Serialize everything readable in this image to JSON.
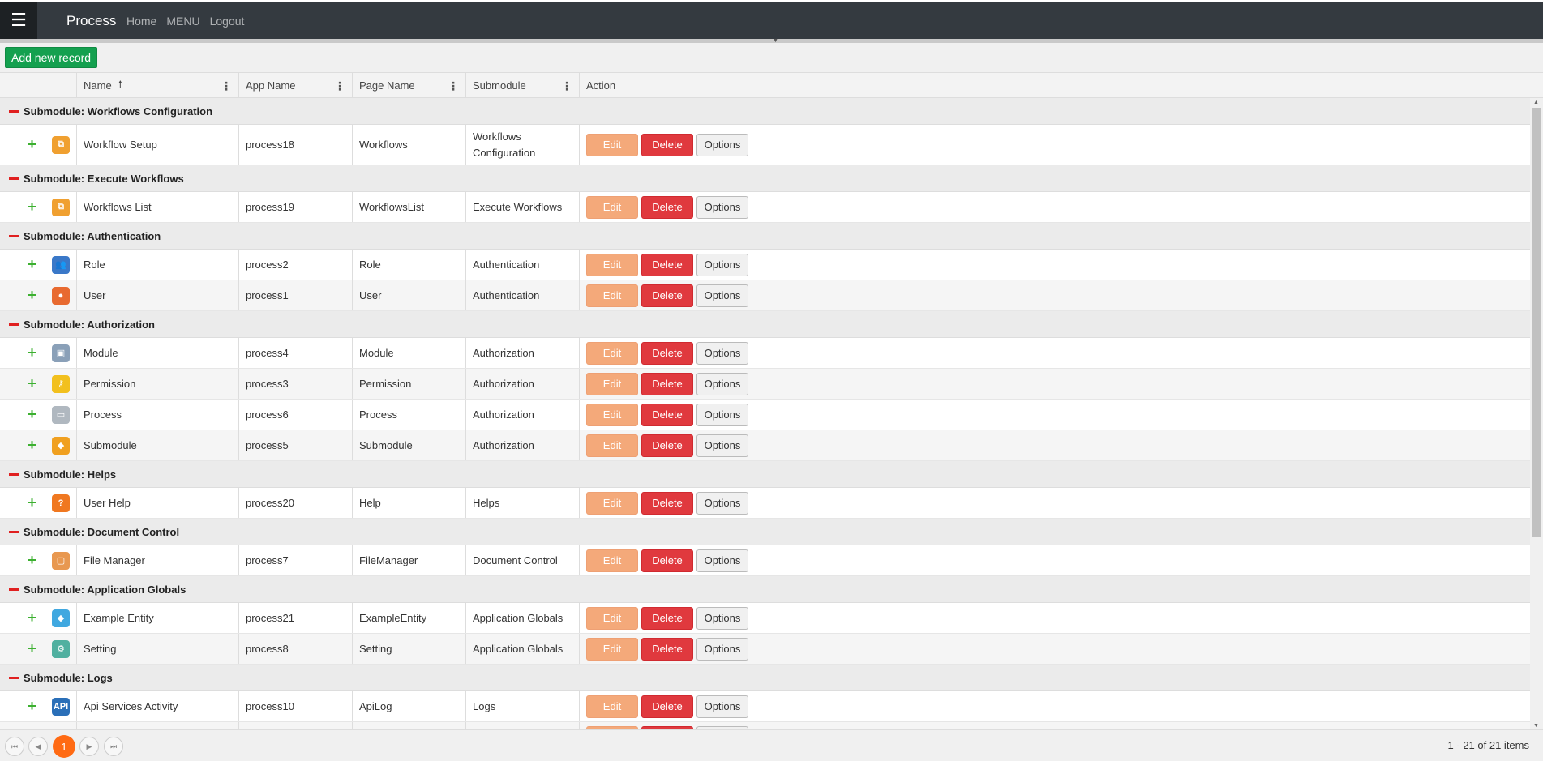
{
  "topbar": {
    "menu_icon": "hamburger-icon",
    "title": "Process",
    "nav": [
      "Home",
      "MENU",
      "Logout"
    ]
  },
  "toolbar": {
    "add_label": "Add new record"
  },
  "columns": {
    "name": "Name",
    "app_name": "App Name",
    "page_name": "Page Name",
    "submodule": "Submodule",
    "action": "Action"
  },
  "buttons": {
    "edit": "Edit",
    "delete": "Delete",
    "options": "Options"
  },
  "groups": [
    {
      "label": "Submodule: Workflows Configuration",
      "rows": [
        {
          "name": "Workflow Setup",
          "app": "process18",
          "page": "Workflows",
          "sub": "Workflows Configuration",
          "icon": "workflow-icon",
          "color": "#f0a030"
        }
      ]
    },
    {
      "label": "Submodule: Execute Workflows",
      "rows": [
        {
          "name": "Workflows List",
          "app": "process19",
          "page": "WorkflowsList",
          "sub": "Execute Workflows",
          "icon": "workflow-icon",
          "color": "#f0a030"
        }
      ]
    },
    {
      "label": "Submodule: Authentication",
      "rows": [
        {
          "name": "Role",
          "app": "process2",
          "page": "Role",
          "sub": "Authentication",
          "icon": "users-icon",
          "color": "#3a78c8"
        },
        {
          "name": "User",
          "app": "process1",
          "page": "User",
          "sub": "Authentication",
          "icon": "user-icon",
          "color": "#e86a30"
        }
      ]
    },
    {
      "label": "Submodule: Authorization",
      "rows": [
        {
          "name": "Module",
          "app": "process4",
          "page": "Module",
          "sub": "Authorization",
          "icon": "box-icon",
          "color": "#8aa0b8"
        },
        {
          "name": "Permission",
          "app": "process3",
          "page": "Permission",
          "sub": "Authorization",
          "icon": "key-icon",
          "color": "#f2c01e"
        },
        {
          "name": "Process",
          "app": "process6",
          "page": "Process",
          "sub": "Authorization",
          "icon": "process-icon",
          "color": "#b0b8c0"
        },
        {
          "name": "Submodule",
          "app": "process5",
          "page": "Submodule",
          "sub": "Authorization",
          "icon": "cube-icon",
          "color": "#f0a020"
        }
      ]
    },
    {
      "label": "Submodule: Helps",
      "rows": [
        {
          "name": "User Help",
          "app": "process20",
          "page": "Help",
          "sub": "Helps",
          "icon": "help-icon",
          "color": "#f07820"
        }
      ]
    },
    {
      "label": "Submodule: Document Control",
      "rows": [
        {
          "name": "File Manager",
          "app": "process7",
          "page": "FileManager",
          "sub": "Document Control",
          "icon": "folder-icon",
          "color": "#e89850"
        }
      ]
    },
    {
      "label": "Submodule: Application Globals",
      "rows": [
        {
          "name": "Example Entity",
          "app": "process21",
          "page": "ExampleEntity",
          "sub": "Application Globals",
          "icon": "cube-icon",
          "color": "#40a8e0"
        },
        {
          "name": "Setting",
          "app": "process8",
          "page": "Setting",
          "sub": "Application Globals",
          "icon": "settings-icon",
          "color": "#50b0a0"
        }
      ]
    },
    {
      "label": "Submodule: Logs",
      "rows": [
        {
          "name": "Api Services Activity",
          "app": "process10",
          "page": "ApiLog",
          "sub": "Logs",
          "icon": "api-icon",
          "color": "#2a6fb8"
        },
        {
          "name": "",
          "app": "",
          "page": "",
          "sub": "",
          "icon": "log-icon",
          "color": "#2a6fb8"
        }
      ]
    }
  ],
  "pager": {
    "current": "1",
    "info": "1 - 21 of 21 items"
  }
}
